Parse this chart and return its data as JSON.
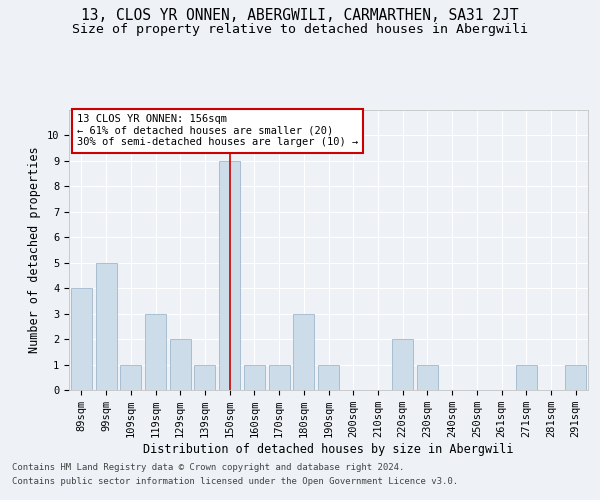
{
  "title": "13, CLOS YR ONNEN, ABERGWILI, CARMARTHEN, SA31 2JT",
  "subtitle": "Size of property relative to detached houses in Abergwili",
  "xlabel": "Distribution of detached houses by size in Abergwili",
  "ylabel": "Number of detached properties",
  "categories": [
    "89sqm",
    "99sqm",
    "109sqm",
    "119sqm",
    "129sqm",
    "139sqm",
    "150sqm",
    "160sqm",
    "170sqm",
    "180sqm",
    "190sqm",
    "200sqm",
    "210sqm",
    "220sqm",
    "230sqm",
    "240sqm",
    "250sqm",
    "261sqm",
    "271sqm",
    "281sqm",
    "291sqm"
  ],
  "values": [
    4,
    5,
    1,
    3,
    2,
    1,
    9,
    1,
    1,
    3,
    1,
    0,
    0,
    2,
    1,
    0,
    0,
    0,
    1,
    0,
    1
  ],
  "highlight_index": 6,
  "bar_color": "#ccdce8",
  "bar_edge_color": "#a0b8cc",
  "highlight_line_color": "#cc0000",
  "annotation_text": "13 CLOS YR ONNEN: 156sqm\n← 61% of detached houses are smaller (20)\n30% of semi-detached houses are larger (10) →",
  "annotation_box_color": "#cc0000",
  "ylim": [
    0,
    11
  ],
  "yticks": [
    0,
    1,
    2,
    3,
    4,
    5,
    6,
    7,
    8,
    9,
    10
  ],
  "footer_line1": "Contains HM Land Registry data © Crown copyright and database right 2024.",
  "footer_line2": "Contains public sector information licensed under the Open Government Licence v3.0.",
  "background_color": "#eef2f7",
  "grid_color": "#ffffff",
  "title_fontsize": 10.5,
  "subtitle_fontsize": 9.5,
  "axis_label_fontsize": 8.5,
  "tick_fontsize": 7.5,
  "annotation_fontsize": 7.5,
  "footer_fontsize": 6.5
}
